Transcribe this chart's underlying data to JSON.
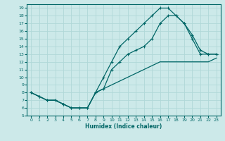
{
  "xlabel": "Humidex (Indice chaleur)",
  "xlim": [
    -0.5,
    23.5
  ],
  "ylim": [
    5,
    19.5
  ],
  "xticks": [
    0,
    1,
    2,
    3,
    4,
    5,
    6,
    7,
    8,
    9,
    10,
    11,
    12,
    13,
    14,
    15,
    16,
    17,
    18,
    19,
    20,
    21,
    22,
    23
  ],
  "yticks": [
    5,
    6,
    7,
    8,
    9,
    10,
    11,
    12,
    13,
    14,
    15,
    16,
    17,
    18,
    19
  ],
  "bg_color": "#cce9e9",
  "line_color": "#006666",
  "grid_color": "#b0d8d8",
  "line1_x": [
    0,
    1,
    2,
    3,
    4,
    5,
    6,
    7,
    8,
    9,
    10,
    11,
    12,
    13,
    14,
    15,
    16,
    17,
    18,
    19,
    20,
    21,
    22,
    23
  ],
  "line1_y": [
    8,
    7.5,
    7,
    7,
    6.5,
    6,
    6,
    6,
    8,
    10,
    12,
    14,
    15,
    16,
    17,
    18,
    19,
    19,
    18,
    17,
    15,
    13,
    13,
    13
  ],
  "line2_x": [
    0,
    1,
    2,
    3,
    4,
    5,
    6,
    7,
    8,
    9,
    10,
    11,
    12,
    13,
    14,
    15,
    16,
    17,
    18,
    19,
    20,
    21,
    22,
    23
  ],
  "line2_y": [
    8,
    7.5,
    7,
    7,
    6.5,
    6,
    6,
    6,
    8,
    8.5,
    11,
    12,
    13,
    13.5,
    14,
    15,
    17,
    18,
    18,
    17,
    15.5,
    13.5,
    13,
    13
  ],
  "line3_x": [
    0,
    1,
    2,
    3,
    4,
    5,
    6,
    7,
    8,
    9,
    10,
    11,
    12,
    13,
    14,
    15,
    16,
    17,
    18,
    19,
    20,
    21,
    22,
    23
  ],
  "line3_y": [
    8,
    7.5,
    7,
    7,
    6.5,
    6,
    6,
    6,
    8,
    8.5,
    9,
    9.5,
    10,
    10.5,
    11,
    11.5,
    12,
    12,
    12,
    12,
    12,
    12,
    12,
    12.5
  ]
}
